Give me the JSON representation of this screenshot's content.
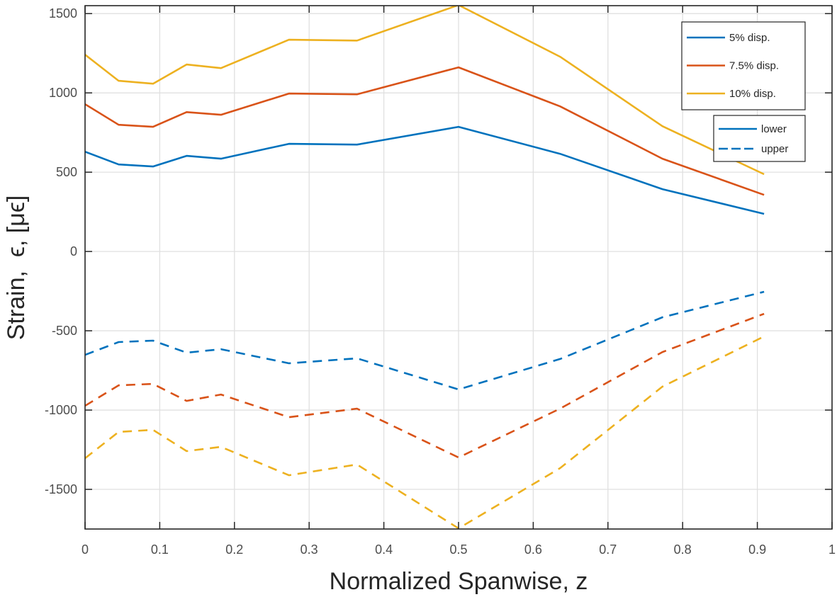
{
  "chart_data": {
    "type": "line",
    "title": "",
    "xlabel": "Normalized Spanwise, z",
    "ylabel": "Strain,  ϵ, [μϵ]",
    "xlim": [
      0,
      1
    ],
    "ylim": [
      -1750,
      1550
    ],
    "xticks": [
      0,
      0.1,
      0.2,
      0.3,
      0.4,
      0.5,
      0.6,
      0.7,
      0.8,
      0.9,
      1
    ],
    "xtick_labels": [
      "0",
      "0.1",
      "0.2",
      "0.3",
      "0.4",
      "0.5",
      "0.6",
      "0.7",
      "0.8",
      "0.9",
      "1"
    ],
    "yticks": [
      -1500,
      -1000,
      -500,
      0,
      500,
      1000,
      1500
    ],
    "ytick_labels": [
      "-1500",
      "-1000",
      "-500",
      "0",
      "500",
      "1000",
      "1500"
    ],
    "grid": true,
    "x": [
      0,
      0.045,
      0.091,
      0.136,
      0.182,
      0.273,
      0.364,
      0.5,
      0.636,
      0.773,
      0.909
    ],
    "series": [
      {
        "name": "5% disp. lower",
        "group": "5% disp.",
        "surface": "lower",
        "color": "#0072BD",
        "style": "solid",
        "values": [
          629,
          549,
          536,
          603,
          585,
          679,
          674,
          786,
          616,
          393,
          237
        ]
      },
      {
        "name": "7.5% disp. lower",
        "group": "7.5% disp.",
        "surface": "lower",
        "color": "#D95319",
        "style": "solid",
        "values": [
          929,
          799,
          786,
          879,
          862,
          996,
          991,
          1161,
          915,
          585,
          357
        ]
      },
      {
        "name": "10% disp. lower",
        "group": "10% disp.",
        "surface": "lower",
        "color": "#EDB120",
        "style": "solid",
        "values": [
          1241,
          1076,
          1058,
          1179,
          1156,
          1335,
          1330,
          1554,
          1228,
          790,
          487
        ]
      },
      {
        "name": "5% disp. upper",
        "group": "5% disp.",
        "surface": "upper",
        "color": "#0072BD",
        "style": "dashed",
        "values": [
          -652,
          -571,
          -562,
          -638,
          -616,
          -705,
          -674,
          -870,
          -678,
          -415,
          -254
        ]
      },
      {
        "name": "7.5% disp. upper",
        "group": "7.5% disp.",
        "surface": "upper",
        "color": "#D95319",
        "style": "dashed",
        "values": [
          -973,
          -844,
          -835,
          -942,
          -902,
          -1045,
          -991,
          -1299,
          -991,
          -634,
          -393
        ]
      },
      {
        "name": "10% disp. upper",
        "group": "10% disp.",
        "surface": "upper",
        "color": "#EDB120",
        "style": "dashed",
        "values": [
          -1304,
          -1138,
          -1125,
          -1259,
          -1232,
          -1411,
          -1343,
          -1746,
          -1366,
          -852,
          -536
        ]
      }
    ],
    "legends": [
      {
        "placement": "top-right",
        "entries": [
          {
            "label": "5% disp.",
            "color": "#0072BD",
            "style": "solid"
          },
          {
            "label": "7.5% disp.",
            "color": "#D95319",
            "style": "solid"
          },
          {
            "label": "10% disp.",
            "color": "#EDB120",
            "style": "solid"
          }
        ]
      },
      {
        "placement": "top-right",
        "entries": [
          {
            "label": "lower",
            "color": "#0072BD",
            "style": "solid"
          },
          {
            "label": "upper",
            "color": "#0072BD",
            "style": "dashed"
          }
        ]
      }
    ]
  }
}
